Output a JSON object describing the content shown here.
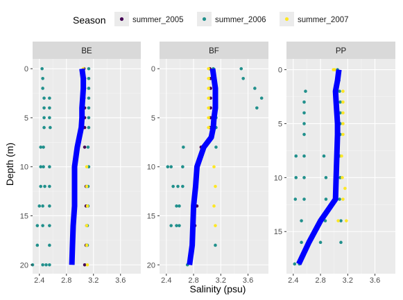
{
  "legend": {
    "title": "Season",
    "items": [
      {
        "label": "summer_2005",
        "color": "#440154"
      },
      {
        "label": "summer_2006",
        "color": "#21908C"
      },
      {
        "label": "summer_2007",
        "color": "#FDE725"
      }
    ]
  },
  "chart_data": {
    "type": "scatter",
    "xlabel": "Salinity (psu)",
    "ylabel": "Depth (m)",
    "line_color": "#0000FF",
    "panels": [
      {
        "name": "BE",
        "xlim": [
          2.3,
          3.9
        ],
        "ylim": [
          20.9,
          -1.0
        ],
        "x_ticks": [
          2.4,
          2.8,
          3.2,
          3.6
        ],
        "y_ticks": [
          0,
          5,
          10,
          15,
          20
        ],
        "series": [
          {
            "name": "summer_2005",
            "points": [
              [
                3.06,
                0
              ],
              [
                3.07,
                1
              ],
              [
                3.07,
                2
              ],
              [
                3.06,
                3
              ],
              [
                3.07,
                4
              ],
              [
                3.07,
                5
              ],
              [
                3.07,
                6
              ],
              [
                3.07,
                8
              ],
              [
                3.09,
                12
              ],
              [
                3.09,
                14
              ],
              [
                3.1,
                16
              ],
              [
                3.09,
                18
              ],
              [
                3.07,
                20
              ]
            ]
          },
          {
            "name": "summer_2006",
            "points": [
              [
                2.44,
                0
              ],
              [
                3.13,
                0
              ],
              [
                2.45,
                1
              ],
              [
                3.13,
                1
              ],
              [
                2.45,
                2
              ],
              [
                3.13,
                2
              ],
              [
                2.47,
                3
              ],
              [
                2.55,
                3
              ],
              [
                3.13,
                3
              ],
              [
                2.47,
                4
              ],
              [
                2.55,
                4
              ],
              [
                3.13,
                4
              ],
              [
                2.47,
                5
              ],
              [
                2.55,
                5
              ],
              [
                3.13,
                5
              ],
              [
                2.47,
                6
              ],
              [
                2.56,
                6
              ],
              [
                3.13,
                6
              ],
              [
                2.42,
                8
              ],
              [
                2.46,
                8
              ],
              [
                3.12,
                8
              ],
              [
                2.42,
                10
              ],
              [
                2.46,
                10
              ],
              [
                2.55,
                10
              ],
              [
                3.13,
                10
              ],
              [
                2.42,
                12
              ],
              [
                2.48,
                12
              ],
              [
                2.55,
                12
              ],
              [
                3.12,
                12
              ],
              [
                2.4,
                14
              ],
              [
                2.45,
                14
              ],
              [
                2.55,
                14
              ],
              [
                3.12,
                14
              ],
              [
                2.37,
                16
              ],
              [
                2.45,
                16
              ],
              [
                2.55,
                16
              ],
              [
                3.11,
                16
              ],
              [
                2.37,
                18
              ],
              [
                2.55,
                18
              ],
              [
                3.11,
                18
              ],
              [
                2.3,
                20
              ],
              [
                2.45,
                20
              ],
              [
                2.5,
                20
              ],
              [
                2.55,
                20
              ]
            ]
          },
          {
            "name": "summer_2007",
            "points": [
              [
                3.05,
                0
              ],
              [
                3.1,
                10
              ],
              [
                3.1,
                12
              ],
              [
                3.11,
                14
              ],
              [
                3.1,
                16
              ],
              [
                3.1,
                18
              ],
              [
                3.11,
                20
              ]
            ]
          }
        ],
        "mean_line": [
          [
            3.03,
            0
          ],
          [
            3.05,
            1
          ],
          [
            3.05,
            2
          ],
          [
            3.04,
            3
          ],
          [
            3.03,
            4
          ],
          [
            3.03,
            5
          ],
          [
            3.02,
            6
          ],
          [
            2.96,
            8
          ],
          [
            2.92,
            10
          ],
          [
            2.92,
            12
          ],
          [
            2.92,
            14
          ],
          [
            2.9,
            16
          ],
          [
            2.89,
            18
          ],
          [
            2.88,
            20
          ]
        ]
      },
      {
        "name": "BF",
        "xlim": [
          2.3,
          3.9
        ],
        "ylim": [
          20.9,
          -1.0
        ],
        "x_ticks": [
          2.4,
          2.8,
          3.2,
          3.6
        ],
        "y_ticks": [
          0,
          5,
          10,
          15,
          20
        ],
        "series": [
          {
            "name": "summer_2005",
            "points": [
              [
                3.04,
                0
              ],
              [
                3.05,
                1
              ],
              [
                3.05,
                2
              ],
              [
                3.05,
                3
              ],
              [
                3.05,
                4
              ],
              [
                3.05,
                5
              ],
              [
                3.04,
                6
              ],
              [
                2.91,
                8
              ],
              [
                2.85,
                14
              ],
              [
                2.82,
                16
              ]
            ]
          },
          {
            "name": "summer_2006",
            "points": [
              [
                3.09,
                0
              ],
              [
                3.5,
                0
              ],
              [
                3.53,
                1
              ],
              [
                3.8,
                3
              ],
              [
                3.73,
                4
              ],
              [
                3.7,
                2
              ],
              [
                3.11,
                1
              ],
              [
                3.12,
                2
              ],
              [
                3.13,
                3
              ],
              [
                3.13,
                4
              ],
              [
                3.13,
                5
              ],
              [
                3.13,
                6
              ],
              [
                3.13,
                8
              ],
              [
                2.65,
                8
              ],
              [
                2.42,
                10
              ],
              [
                2.47,
                10
              ],
              [
                2.64,
                10
              ],
              [
                2.5,
                12
              ],
              [
                2.57,
                12
              ],
              [
                2.64,
                12
              ],
              [
                2.55,
                14
              ],
              [
                2.59,
                14
              ],
              [
                2.47,
                16
              ],
              [
                2.55,
                16
              ],
              [
                2.59,
                16
              ],
              [
                3.12,
                18
              ],
              [
                2.71,
                20
              ]
            ]
          },
          {
            "name": "summer_2007",
            "points": [
              [
                3.02,
                0
              ],
              [
                3.02,
                1
              ],
              [
                3.02,
                2
              ],
              [
                3.02,
                3
              ],
              [
                3.02,
                4
              ],
              [
                3.02,
                5
              ],
              [
                3.02,
                6
              ],
              [
                3.1,
                10
              ],
              [
                3.12,
                12
              ],
              [
                3.1,
                14
              ],
              [
                3.12,
                16
              ]
            ]
          }
        ],
        "mean_line": [
          [
            3.08,
            0
          ],
          [
            3.1,
            1
          ],
          [
            3.12,
            2
          ],
          [
            3.12,
            3
          ],
          [
            3.12,
            4
          ],
          [
            3.1,
            5
          ],
          [
            3.09,
            6
          ],
          [
            3.06,
            7
          ],
          [
            2.95,
            8
          ],
          [
            2.85,
            10
          ],
          [
            2.83,
            12
          ],
          [
            2.8,
            14
          ],
          [
            2.79,
            16
          ],
          [
            2.78,
            18
          ],
          [
            2.74,
            20
          ]
        ]
      },
      {
        "name": "PP",
        "xlim": [
          2.3,
          3.9
        ],
        "ylim": [
          18.9,
          -1.0
        ],
        "x_ticks": [
          2.4,
          2.8,
          3.2,
          3.6
        ],
        "y_ticks": [
          0,
          5,
          10,
          15
        ],
        "series": [
          {
            "name": "summer_2005",
            "points": []
          },
          {
            "name": "summer_2006",
            "points": [
              [
                3.05,
                0
              ],
              [
                3.07,
                1
              ],
              [
                2.58,
                2
              ],
              [
                3.08,
                2
              ],
              [
                2.56,
                3
              ],
              [
                3.09,
                3
              ],
              [
                2.56,
                4
              ],
              [
                3.09,
                4
              ],
              [
                2.56,
                5
              ],
              [
                3.09,
                5
              ],
              [
                2.56,
                6
              ],
              [
                3.09,
                6
              ],
              [
                2.44,
                8
              ],
              [
                2.56,
                8
              ],
              [
                2.85,
                8
              ],
              [
                3.08,
                8
              ],
              [
                2.44,
                10
              ],
              [
                2.56,
                10
              ],
              [
                2.88,
                10
              ],
              [
                3.09,
                10
              ],
              [
                2.43,
                12
              ],
              [
                2.56,
                12
              ],
              [
                2.88,
                12
              ],
              [
                3.08,
                12
              ],
              [
                2.52,
                14
              ],
              [
                2.87,
                14
              ],
              [
                3.1,
                14
              ],
              [
                2.52,
                16
              ],
              [
                2.8,
                16
              ],
              [
                3.1,
                16
              ],
              [
                2.42,
                18
              ],
              [
                2.49,
                18
              ]
            ]
          },
          {
            "name": "summer_2007",
            "points": [
              [
                2.99,
                0
              ],
              [
                3.01,
                0
              ],
              [
                3.06,
                1
              ],
              [
                3.13,
                2
              ],
              [
                3.13,
                3
              ],
              [
                3.13,
                4
              ],
              [
                3.13,
                5
              ],
              [
                3.13,
                6
              ],
              [
                3.11,
                8
              ],
              [
                3.12,
                10
              ],
              [
                3.16,
                11
              ],
              [
                3.13,
                12
              ],
              [
                3.06,
                14
              ],
              [
                3.18,
                14
              ]
            ]
          }
        ],
        "mean_line": [
          [
            3.07,
            0
          ],
          [
            3.05,
            1
          ],
          [
            3.02,
            2
          ],
          [
            3.03,
            3
          ],
          [
            3.04,
            4
          ],
          [
            3.05,
            5
          ],
          [
            3.05,
            6
          ],
          [
            3.04,
            8
          ],
          [
            3.03,
            10
          ],
          [
            3.02,
            12
          ],
          [
            2.8,
            14
          ],
          [
            2.63,
            16
          ],
          [
            2.48,
            18
          ]
        ]
      }
    ]
  }
}
